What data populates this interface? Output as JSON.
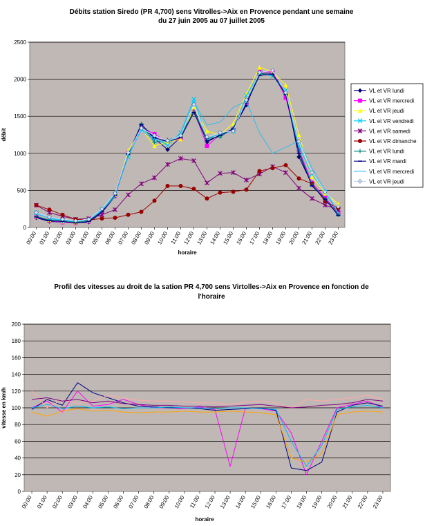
{
  "charts": [
    {
      "title_line1": "Débits station Siredo (PR 4,700) sens Vitrolles->Aix en Provence pendant une semaine",
      "title_line2": "du 27 juin 2005 au 07 juillet 2005",
      "xlabel": "horaire",
      "ylabel": "débit",
      "plot_bg": "#c0b8b4"
    },
    {
      "title_line1": "Profil des vitesses au droit de la sation PR 4,700 sens Virtolles->Aix en Provence en fonction de",
      "title_line2": "l'horaire",
      "xlabel": "horaire",
      "ylabel": "vitesse en km/h",
      "plot_bg": "#c0b8b4"
    }
  ],
  "chart_data": [
    {
      "type": "line",
      "title": "Débits station Siredo (PR 4,700) sens Vitrolles->Aix en Provence pendant une semaine du 27 juin 2005 au 07 juillet 2005",
      "xlabel": "horaire",
      "ylabel": "débit",
      "ylim": [
        0,
        2500
      ],
      "yticks": [
        0,
        500,
        1000,
        1500,
        2000,
        2500
      ],
      "grid": true,
      "legend": "right",
      "categories": [
        "00:00",
        "01:00",
        "02:00",
        "03:00",
        "04:00",
        "05:00",
        "06:00",
        "07:00",
        "08:00",
        "09:00",
        "10:00",
        "11:00",
        "12:00",
        "13:00",
        "14:00",
        "15:00",
        "16:00",
        "17:00",
        "18:00",
        "19:00",
        "20:00",
        "21:00",
        "22:00",
        "23:00"
      ],
      "series": [
        {
          "name": "VL et VR lundi",
          "color": "#000080",
          "marker": "diamond",
          "values": [
            130,
            80,
            70,
            60,
            70,
            200,
            420,
            1000,
            1380,
            1200,
            1050,
            1220,
            1600,
            1150,
            1250,
            1330,
            1650,
            2080,
            2080,
            1820,
            950,
            580,
            380,
            180
          ]
        },
        {
          "name": "VL et VR mercredi",
          "color": "#ff00ff",
          "marker": "square",
          "values": [
            140,
            90,
            70,
            60,
            80,
            210,
            430,
            1010,
            1350,
            1260,
            1150,
            1200,
            1580,
            1100,
            1250,
            1320,
            1680,
            2100,
            2100,
            1750,
            1050,
            600,
            400,
            200
          ]
        },
        {
          "name": "VL et VR jeudi",
          "color": "#ffff00",
          "marker": "triangle",
          "values": [
            150,
            100,
            80,
            70,
            90,
            230,
            440,
            1040,
            1330,
            1100,
            1150,
            1190,
            1620,
            1300,
            1250,
            1400,
            1800,
            2160,
            2100,
            1920,
            1250,
            680,
            460,
            320
          ]
        },
        {
          "name": "VL et VR vendredi",
          "color": "#00ccff",
          "marker": "x",
          "values": [
            200,
            120,
            90,
            80,
            100,
            240,
            450,
            950,
            1330,
            1200,
            1110,
            1280,
            1730,
            1200,
            1260,
            1300,
            1780,
            2080,
            2040,
            1850,
            1090,
            720,
            480,
            190
          ]
        },
        {
          "name": "VL et VR samedi",
          "color": "#800080",
          "marker": "star",
          "values": [
            300,
            200,
            150,
            110,
            120,
            170,
            240,
            440,
            590,
            670,
            850,
            930,
            900,
            600,
            730,
            740,
            640,
            720,
            820,
            740,
            530,
            390,
            300,
            240
          ]
        },
        {
          "name": "VL et VR dimanche",
          "color": "#990000",
          "marker": "circle",
          "values": [
            300,
            240,
            170,
            110,
            100,
            120,
            130,
            170,
            210,
            360,
            560,
            560,
            520,
            390,
            470,
            480,
            510,
            760,
            800,
            840,
            660,
            590,
            350,
            260
          ]
        },
        {
          "name": "VL et VR lundi",
          "color": "#008080",
          "marker": "plus",
          "values": [
            150,
            100,
            90,
            70,
            90,
            220,
            440,
            980,
            1400,
            1150,
            1180,
            1230,
            1570,
            1200,
            1220,
            1340,
            1700,
            2070,
            2060,
            1800,
            1030,
            570,
            390,
            170
          ]
        },
        {
          "name": "VL et VR mardi",
          "color": "#000080",
          "marker": "dash",
          "values": [
            140,
            90,
            80,
            60,
            80,
            210,
            430,
            990,
            1390,
            1210,
            1160,
            1210,
            1550,
            1170,
            1240,
            1330,
            1670,
            2050,
            2070,
            1790,
            1000,
            560,
            380,
            160
          ]
        },
        {
          "name": "VL et VR mercredi",
          "color": "#33bbee",
          "marker": "none",
          "values": [
            180,
            130,
            100,
            80,
            100,
            230,
            420,
            970,
            1310,
            1180,
            1150,
            1260,
            1700,
            1380,
            1420,
            1620,
            1700,
            1280,
            1000,
            1080,
            1170,
            800,
            500,
            190
          ]
        },
        {
          "name": "VL et VR jeudi",
          "color": "#cce0ff",
          "marker": "diamond",
          "values": [
            200,
            140,
            110,
            90,
            110,
            250,
            460,
            1010,
            1340,
            1240,
            1170,
            1240,
            1660,
            1220,
            1280,
            1300,
            1720,
            2090,
            2120,
            1820,
            1160,
            740,
            480,
            280
          ]
        }
      ]
    },
    {
      "type": "line",
      "title": "Profil des vitesses au droit de la sation PR 4,700 sens Virtolles->Aix en Provence en fonction de l'horaire",
      "xlabel": "horaire",
      "ylabel": "vitesse en km/h",
      "ylim": [
        0,
        200
      ],
      "yticks": [
        0,
        20,
        40,
        60,
        80,
        100,
        120,
        140,
        160,
        180,
        200
      ],
      "grid": true,
      "legend": "none",
      "categories": [
        "00:00",
        "01:00",
        "02:00",
        "03:00",
        "04:00",
        "05:00",
        "06:00",
        "07:00",
        "08:00",
        "09:00",
        "10:00",
        "11:00",
        "12:00",
        "13:00",
        "14:00",
        "15:00",
        "16:00",
        "17:00",
        "18:00",
        "19:00",
        "20:00",
        "21:00",
        "22:00",
        "23:00"
      ],
      "series": [
        {
          "color": "#ff00ff",
          "values": [
            100,
            108,
            95,
            120,
            102,
            104,
            110,
            104,
            100,
            100,
            99,
            101,
            98,
            30,
            100,
            99,
            96,
            70,
            20,
            60,
            100,
            104,
            108,
            100
          ]
        },
        {
          "color": "#000080",
          "values": [
            98,
            110,
            103,
            130,
            118,
            112,
            106,
            102,
            101,
            100,
            100,
            99,
            97,
            98,
            99,
            100,
            97,
            28,
            25,
            35,
            95,
            103,
            106,
            102
          ]
        },
        {
          "color": "#ffa500",
          "values": [
            95,
            90,
            96,
            99,
            96,
            97,
            95,
            94,
            95,
            95,
            96,
            95,
            95,
            96,
            95,
            94,
            92,
            40,
            35,
            45,
            92,
            95,
            96,
            95
          ]
        },
        {
          "color": "#00bbee",
          "values": [
            100,
            104,
            99,
            102,
            100,
            101,
            99,
            100,
            100,
            101,
            100,
            100,
            99,
            100,
            100,
            99,
            98,
            60,
            30,
            55,
            98,
            101,
            103,
            100
          ]
        },
        {
          "color": "#ffaaaa",
          "values": [
            120,
            100,
            110,
            105,
            108,
            115,
            112,
            109,
            108,
            108,
            107,
            106,
            106,
            104,
            107,
            108,
            106,
            100,
            110,
            108,
            110,
            112,
            115,
            110
          ]
        },
        {
          "color": "#800080",
          "values": [
            110,
            112,
            108,
            110,
            106,
            108,
            105,
            104,
            103,
            103,
            102,
            102,
            101,
            102,
            103,
            104,
            102,
            100,
            101,
            103,
            104,
            106,
            110,
            108
          ]
        }
      ]
    }
  ]
}
